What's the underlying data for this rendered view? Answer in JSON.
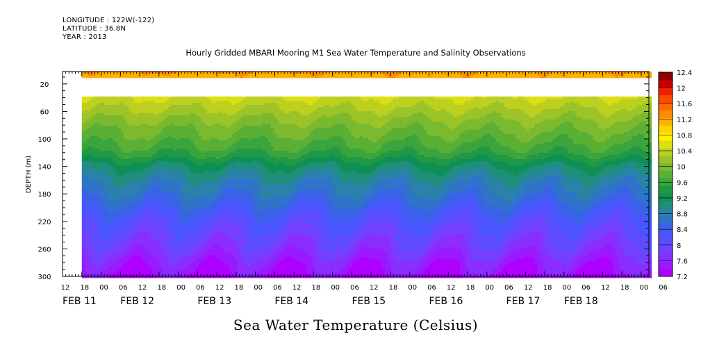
{
  "header": {
    "longitude": "LONGITUDE : 122W(-122)",
    "latitude": "LATITUDE : 36.8N",
    "year": "YEAR : 2013"
  },
  "chart_data": {
    "type": "heatmap",
    "title": "Hourly Gridded MBARI Mooring M1 Sea Water Temperature and Salinity Observations",
    "ylabel": "DEPTH (m)",
    "colorbar_label": "Sea Water Temperature (Celsius)",
    "y_ticks": [
      20,
      60,
      100,
      140,
      180,
      220,
      260,
      300
    ],
    "y_range": [
      2,
      300
    ],
    "y_inverted": true,
    "x_range_days": [
      0,
      7.6
    ],
    "x_hour_ticks": [
      {
        "day": 0.0,
        "label": "12"
      },
      {
        "day": 0.25,
        "label": "18"
      },
      {
        "day": 0.5,
        "label": "00"
      },
      {
        "day": 0.75,
        "label": "06"
      },
      {
        "day": 1.0,
        "label": "12"
      },
      {
        "day": 1.25,
        "label": "18"
      },
      {
        "day": 1.5,
        "label": "00"
      },
      {
        "day": 1.75,
        "label": "06"
      },
      {
        "day": 2.0,
        "label": "12"
      },
      {
        "day": 2.25,
        "label": "18"
      },
      {
        "day": 2.5,
        "label": "00"
      },
      {
        "day": 2.75,
        "label": "06"
      },
      {
        "day": 3.0,
        "label": "12"
      },
      {
        "day": 3.25,
        "label": "18"
      },
      {
        "day": 3.5,
        "label": "00"
      },
      {
        "day": 3.75,
        "label": "06"
      },
      {
        "day": 4.0,
        "label": "12"
      },
      {
        "day": 4.25,
        "label": "18"
      },
      {
        "day": 4.5,
        "label": "00"
      },
      {
        "day": 4.75,
        "label": "06"
      },
      {
        "day": 5.0,
        "label": "12"
      },
      {
        "day": 5.25,
        "label": "18"
      },
      {
        "day": 5.5,
        "label": "00"
      },
      {
        "day": 5.75,
        "label": "06"
      },
      {
        "day": 6.0,
        "label": "12"
      },
      {
        "day": 6.25,
        "label": "18"
      },
      {
        "day": 6.5,
        "label": "00"
      },
      {
        "day": 6.75,
        "label": "06"
      },
      {
        "day": 7.0,
        "label": "12"
      },
      {
        "day": 7.25,
        "label": "18"
      },
      {
        "day": 7.5,
        "label": "00"
      },
      {
        "day": 7.75,
        "label": "06"
      }
    ],
    "x_date_labels": [
      {
        "day": 0.0,
        "label": "FEB 11"
      },
      {
        "day": 0.75,
        "label": "FEB 12"
      },
      {
        "day": 1.75,
        "label": "FEB 13"
      },
      {
        "day": 2.75,
        "label": "FEB 14"
      },
      {
        "day": 3.75,
        "label": "FEB 15"
      },
      {
        "day": 4.75,
        "label": "FEB 16"
      },
      {
        "day": 5.75,
        "label": "FEB 17"
      },
      {
        "day": 6.5,
        "label": "FEB 18"
      }
    ],
    "data_start_day": 0.25,
    "depths": [
      2,
      10,
      40,
      60,
      80,
      100,
      120,
      140,
      160,
      180,
      200,
      220,
      240,
      260,
      280,
      300
    ],
    "missing_depth_band": [
      12,
      38
    ],
    "temperature_profile": [
      11.4,
      11.3,
      10.6,
      10.35,
      10.1,
      9.9,
      9.65,
      9.2,
      8.9,
      8.7,
      8.45,
      8.2,
      8.0,
      7.8,
      7.55,
      7.35
    ],
    "levels": [
      7.2,
      7.4,
      7.6,
      7.8,
      8.0,
      8.2,
      8.4,
      8.6,
      8.8,
      9.0,
      9.2,
      9.4,
      9.6,
      9.8,
      10.0,
      10.2,
      10.4,
      10.6,
      10.8,
      11.0,
      11.2,
      11.4,
      11.6,
      11.8,
      12.0,
      12.2,
      12.4
    ],
    "colorbar_ticks": [
      7.2,
      7.6,
      8,
      8.4,
      8.8,
      9.2,
      9.6,
      10,
      10.4,
      10.8,
      11.2,
      11.6,
      12,
      12.4
    ],
    "colors": [
      "#ad00ff",
      "#9a1aff",
      "#8a2dff",
      "#7440ff",
      "#5e4dff",
      "#4a55ff",
      "#3a62e8",
      "#2f74c8",
      "#2a82a8",
      "#1f8f7c",
      "#108f55",
      "#209845",
      "#3ba43d",
      "#5aaf35",
      "#7bb92e",
      "#9cc428",
      "#bdd020",
      "#dde010",
      "#fff200",
      "#ffd500",
      "#ffb000",
      "#ff8c00",
      "#ff6a00",
      "#ff4800",
      "#f02000",
      "#c80000",
      "#8c0000"
    ]
  }
}
